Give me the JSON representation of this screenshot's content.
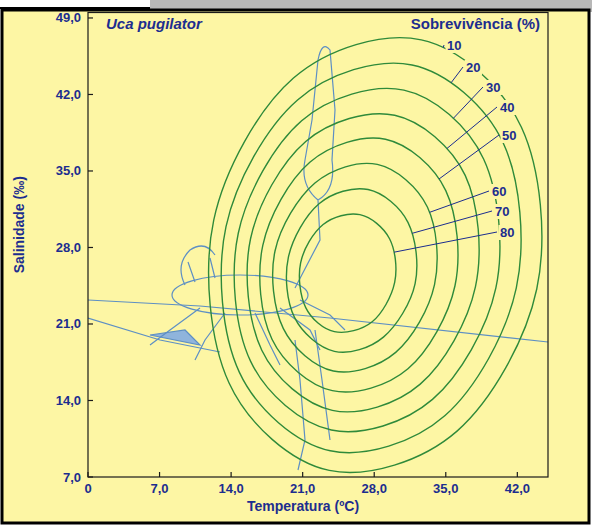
{
  "chart_data": {
    "type": "contour",
    "title": "Uca pugilator",
    "level_title": "Sobrevivência (%)",
    "x_label": "Temperatura (ºC)",
    "y_label": "Salinidade (‰)",
    "xlim": [
      0,
      45
    ],
    "ylim": [
      7,
      49.5
    ],
    "xticks": [
      0,
      {
        "value": 7,
        "label": "7,0"
      },
      {
        "value": 14,
        "label": "14,0"
      },
      {
        "value": 21,
        "label": "21,0"
      },
      {
        "value": 28,
        "label": "28,0"
      },
      {
        "value": 35,
        "label": "35,0"
      },
      {
        "value": 42,
        "label": "42,0"
      }
    ],
    "yticks": [
      {
        "value": 7,
        "label": "7,0"
      },
      {
        "value": 14,
        "label": "14,0"
      },
      {
        "value": 21,
        "label": "21,0"
      },
      {
        "value": 28,
        "label": "28,0"
      },
      {
        "value": 35,
        "label": "35,0"
      },
      {
        "value": 42,
        "label": "42,0"
      },
      {
        "value": 49,
        "label": "49,0"
      }
    ],
    "grid": false,
    "color": "#2f8a3a",
    "series": [
      {
        "level": 10,
        "x": [
          43.9,
          42.4,
          32.6,
          20.1,
          12.3,
          13.8,
          23.6,
          36.1
        ],
        "y": [
          24.2,
          39.0,
          47.0,
          43.5,
          30.5,
          15.6,
          7.6,
          11.2
        ]
      },
      {
        "level": 20,
        "x": [
          41.9,
          40.6,
          31.7,
          20.5,
          13.5,
          14.8,
          23.7,
          34.9
        ],
        "y": [
          24.3,
          37.6,
          44.7,
          41.5,
          29.9,
          16.6,
          9.4,
          12.6
        ]
      },
      {
        "level": 30,
        "x": [
          39.9,
          38.7,
          30.9,
          20.9,
          14.7,
          15.9,
          23.8,
          33.7
        ],
        "y": [
          24.3,
          36.1,
          42.4,
          39.6,
          29.3,
          17.6,
          11.3,
          14.1
        ]
      },
      {
        "level": 40,
        "x": [
          37.9,
          36.9,
          30.0,
          21.3,
          15.9,
          17.0,
          23.9,
          32.5
        ],
        "y": [
          24.4,
          34.6,
          40.1,
          37.7,
          28.8,
          18.6,
          13.1,
          15.5
        ]
      },
      {
        "level": 50,
        "x": [
          35.9,
          35.0,
          29.1,
          21.7,
          17.1,
          18.0,
          23.9,
          31.3
        ],
        "y": [
          24.5,
          33.2,
          37.9,
          35.8,
          28.2,
          19.6,
          14.9,
          16.9
        ]
      },
      {
        "level": 60,
        "x": [
          33.9,
          33.2,
          28.3,
          22.2,
          18.3,
          19.1,
          24.0,
          30.1
        ],
        "y": [
          24.6,
          31.7,
          35.6,
          33.9,
          27.7,
          20.6,
          16.7,
          18.4
        ]
      },
      {
        "level": 70,
        "x": [
          32.0,
          31.3,
          27.4,
          22.6,
          19.6,
          20.2,
          24.1,
          28.9
        ],
        "y": [
          24.7,
          30.3,
          33.3,
          32.0,
          27.1,
          21.6,
          18.5,
          19.8
        ]
      },
      {
        "level": 80,
        "x": [
          30.0,
          29.5,
          26.6,
          23.0,
          20.8,
          21.3,
          24.1,
          27.8
        ],
        "y": [
          24.8,
          28.8,
          31.0,
          30.1,
          26.6,
          22.5,
          20.3,
          21.2
        ]
      }
    ]
  }
}
